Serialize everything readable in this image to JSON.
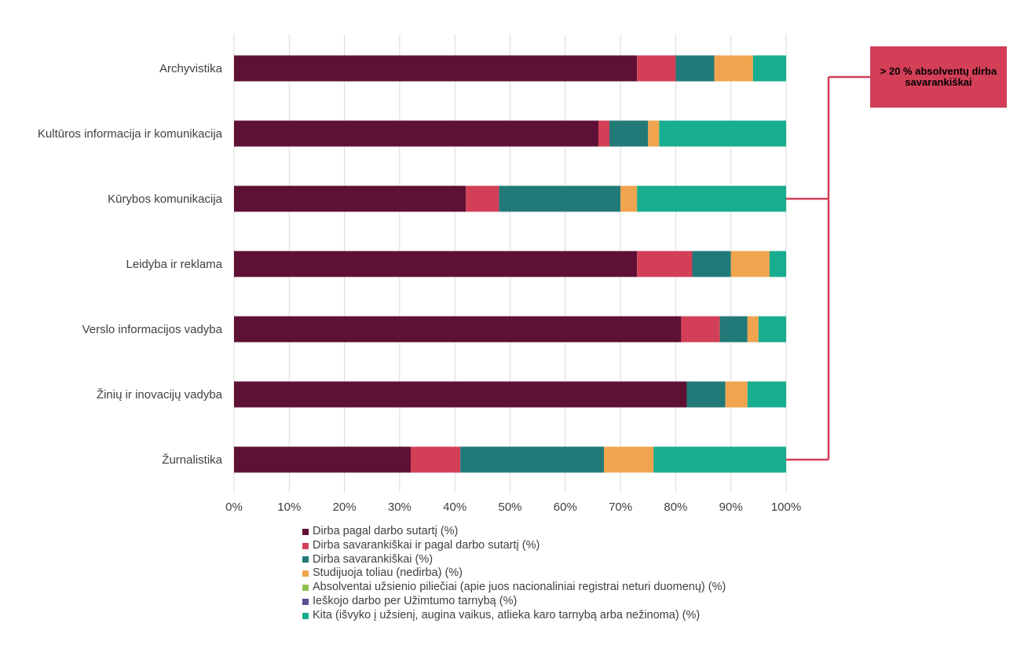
{
  "chart_data": {
    "type": "bar",
    "orientation": "horizontal",
    "stacked": true,
    "categories": [
      "Archyvistika",
      "Kultūros informacija ir komunikacija",
      "Kūrybos komunikacija",
      "Leidyba ir reklama",
      "Verslo informacijos vadyba",
      "Žinių ir inovacijų vadyba",
      "Žurnalistika"
    ],
    "series": [
      {
        "name": "Dirba pagal darbo sutartį (%)",
        "color": "#5e1134",
        "values": [
          73,
          66,
          42,
          73,
          81,
          82,
          32
        ]
      },
      {
        "name": "Dirba savarankiškai ir pagal darbo sutartį (%)",
        "color": "#d23f57",
        "values": [
          7,
          2,
          6,
          10,
          7,
          0,
          9
        ]
      },
      {
        "name": "Dirba savarankiškai (%)",
        "color": "#217a78",
        "values": [
          7,
          7,
          22,
          7,
          5,
          7,
          26
        ]
      },
      {
        "name": "Studijuoja toliau (nedirba) (%)",
        "color": "#f0a44e",
        "values": [
          7,
          2,
          3,
          7,
          2,
          4,
          9
        ]
      },
      {
        "name": "Absolventai užsienio piliečiai (apie juos nacionaliniai registrai neturi duomenų) (%)",
        "color": "#8cc152",
        "values": [
          0,
          0,
          0,
          0,
          0,
          0,
          0
        ]
      },
      {
        "name": "Ieškojo darbo per Užimtumo tarnybą (%)",
        "color": "#5e4e94",
        "values": [
          0,
          0,
          0,
          0,
          0,
          0,
          0
        ]
      },
      {
        "name": "Kita (išvyko į užsienį, augina vaikus, atlieka karo tarnybą arba nežinoma) (%)",
        "color": "#17ad8e",
        "values": [
          6,
          23,
          27,
          3,
          5,
          7,
          24
        ]
      }
    ],
    "x_ticks": [
      "0%",
      "10%",
      "20%",
      "30%",
      "40%",
      "50%",
      "60%",
      "70%",
      "80%",
      "90%",
      "100%"
    ],
    "xlim": [
      0,
      100
    ],
    "grid": true,
    "legend_position": "bottom",
    "annotation": {
      "text": "> 20 % absolventų dirba savarankiškai",
      "color": "#d23f57",
      "targets": [
        "Kūrybos komunikacija",
        "Žurnalistika"
      ]
    }
  }
}
